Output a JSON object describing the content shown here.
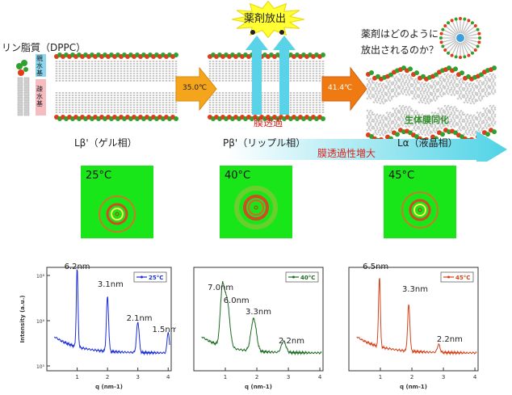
{
  "top": {
    "lipid_label": "リン脂質（DPPC）",
    "hydrophilic": "親水基",
    "hydrophobic": "疎水基",
    "temp1": "35.0℃",
    "temp2": "41.4℃",
    "drug_release": "薬剤放出",
    "question_line1": "薬剤はどのように",
    "question_line2": "放出されるのか？",
    "membrane_permeation": "膜透過",
    "biomembrane": "生体膜同化",
    "phase1": "Lβ'（ゲル相）",
    "phase2": "Pβ'（リップル相）",
    "phase3": "Lα（液晶相）",
    "increase": "膜透過性増大"
  },
  "tiles": [
    {
      "temp": "25°C"
    },
    {
      "temp": "40°C"
    },
    {
      "temp": "45°C"
    }
  ],
  "colors": {
    "head_red": "#e23a1a",
    "head_green": "#2ea12e",
    "tail": "#c8c8c8",
    "arrow_orange": "#f5a51b",
    "arrow_cyan": "#5ad3e8",
    "tile_bg": "#19e619",
    "burst": "#ffff33"
  },
  "chart_data": [
    {
      "type": "line",
      "xlabel": "q (nm-1)",
      "ylabel": "Intensity (a.u.)",
      "xticks": [
        "1",
        "2",
        "3",
        "4"
      ],
      "yticks": [
        "10⁸",
        "10⁶",
        "10⁵"
      ],
      "legend": "25°C",
      "color": "#1c2fd6",
      "peaks": [
        {
          "q": 1.0,
          "label": "6.2nm"
        },
        {
          "q": 2.0,
          "label": "3.1nm"
        },
        {
          "q": 3.0,
          "label": "2.1nm"
        },
        {
          "q": 4.0,
          "label": "1.5nm"
        }
      ]
    },
    {
      "type": "line",
      "xlabel": "q (nm-1)",
      "ylabel": "",
      "xticks": [
        "1",
        "2",
        "3",
        "4"
      ],
      "legend": "40°C",
      "color": "#1e6b23",
      "peaks": [
        {
          "q": 0.9,
          "label": "7.0nm"
        },
        {
          "q": 1.05,
          "label": "6.0nm"
        },
        {
          "q": 1.9,
          "label": "3.3nm"
        },
        {
          "q": 2.85,
          "label": "2.2nm"
        }
      ]
    },
    {
      "type": "line",
      "xlabel": "q (nm-1)",
      "ylabel": "",
      "xticks": [
        "1",
        "2",
        "3",
        "4"
      ],
      "legend": "45°C",
      "color": "#d4431b",
      "peaks": [
        {
          "q": 0.97,
          "label": "6.5nm"
        },
        {
          "q": 1.9,
          "label": "3.3nm"
        },
        {
          "q": 2.85,
          "label": "2.2nm"
        }
      ]
    }
  ]
}
